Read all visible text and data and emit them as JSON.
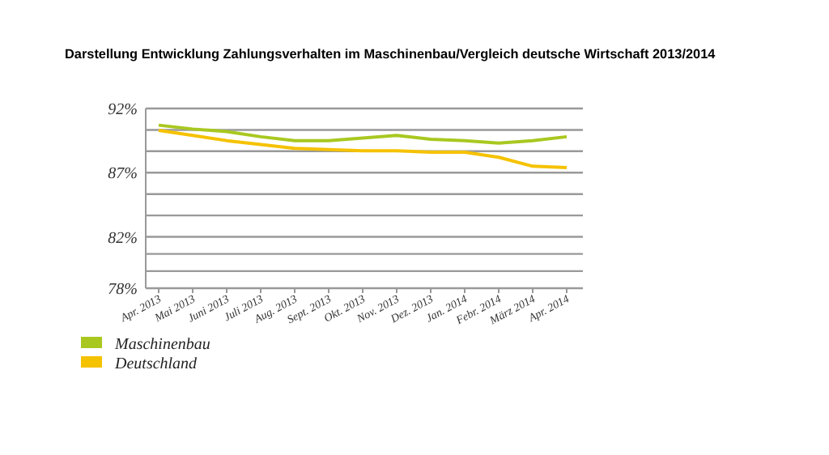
{
  "chart_data": {
    "type": "line",
    "title": "Darstellung Entwicklung Zahlungsverhalten im Maschinenbau/Vergleich deutsche Wirtschaft 2013/2014",
    "categories": [
      "Apr. 2013",
      "Mai 2013",
      "Juni 2013",
      "Juli 2013",
      "Aug. 2013",
      "Sept. 2013",
      "Okt. 2013",
      "Nov. 2013",
      "Dez. 2013",
      "Jan. 2014",
      "Febr. 2014",
      "März 2014",
      "Apr. 2014"
    ],
    "series": [
      {
        "name": "Maschinenbau",
        "color": "#a8c820",
        "values": [
          90.7,
          90.4,
          90.2,
          89.8,
          89.5,
          89.5,
          89.7,
          89.9,
          89.6,
          89.5,
          89.3,
          89.5,
          89.8
        ]
      },
      {
        "name": "Deutschland",
        "color": "#f5c200",
        "values": [
          90.3,
          89.9,
          89.5,
          89.2,
          88.9,
          88.8,
          88.7,
          88.7,
          88.6,
          88.6,
          88.2,
          87.5,
          87.4
        ]
      }
    ],
    "ylim": [
      78,
      92
    ],
    "yticks": [
      {
        "value": 78,
        "label": "78%"
      },
      {
        "value": 79.33,
        "label": null
      },
      {
        "value": 80.67,
        "label": null
      },
      {
        "value": 82,
        "label": "82%"
      },
      {
        "value": 83.67,
        "label": null
      },
      {
        "value": 85.33,
        "label": null
      },
      {
        "value": 87,
        "label": "87%"
      },
      {
        "value": 88.67,
        "label": null
      },
      {
        "value": 90.33,
        "label": null
      },
      {
        "value": 92,
        "label": "92%"
      }
    ],
    "grid": "y",
    "legend": "bottom left",
    "marker": "none",
    "line_style": "solid"
  }
}
